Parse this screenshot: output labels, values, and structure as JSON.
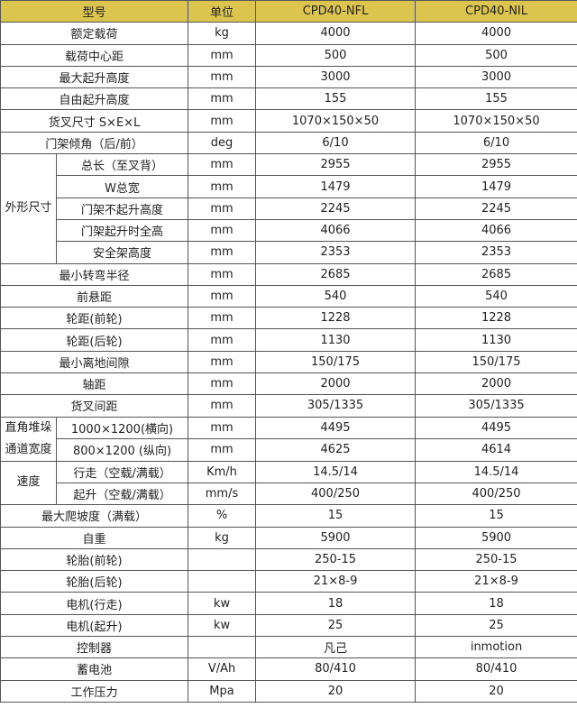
{
  "colors": {
    "header_bg": "#dcc54f",
    "border": "#555555"
  },
  "header": {
    "model": "型号",
    "unit": "单位",
    "col1": "CPD40-NFL",
    "col2": "CPD40-NIL"
  },
  "rows": [
    {
      "label": "额定载荷",
      "unit": "kg",
      "v1": "4000",
      "v2": "4000"
    },
    {
      "label": "载荷中心距",
      "unit": "mm",
      "v1": "500",
      "v2": "500"
    },
    {
      "label": "最大起升高度",
      "unit": "mm",
      "v1": "3000",
      "v2": "3000"
    },
    {
      "label": "自由起升高度",
      "unit": "mm",
      "v1": "155",
      "v2": "155"
    },
    {
      "label": "货叉尺寸  S×E×L",
      "unit": "mm",
      "v1": "1070×150×50",
      "v2": "1070×150×50"
    },
    {
      "label": "门架倾角（后/前）",
      "unit": "deg",
      "v1": "6/10",
      "v2": "6/10"
    },
    {
      "group": "外形尺寸",
      "items": [
        {
          "label": "总长（至叉背）",
          "unit": "mm",
          "v1": "2955",
          "v2": "2955"
        },
        {
          "label": "W总宽",
          "unit": "mm",
          "v1": "1479",
          "v2": "1479"
        },
        {
          "label": "门架不起升高度",
          "unit": "mm",
          "v1": "2245",
          "v2": "2245"
        },
        {
          "label": "门架起升时全高",
          "unit": "mm",
          "v1": "4066",
          "v2": "4066"
        },
        {
          "label": "安全架高度",
          "unit": "mm",
          "v1": "2353",
          "v2": "2353"
        }
      ]
    },
    {
      "label": "最小转弯半径",
      "unit": "mm",
      "v1": "2685",
      "v2": "2685"
    },
    {
      "label": "前悬距",
      "unit": "mm",
      "v1": "540",
      "v2": "540"
    },
    {
      "label": "轮距(前轮)",
      "unit": "mm",
      "v1": "1228",
      "v2": "1228"
    },
    {
      "label": "轮距(后轮)",
      "unit": "mm",
      "v1": "1130",
      "v2": "1130"
    },
    {
      "label": "最小离地间隙",
      "unit": "mm",
      "v1": "150/175",
      "v2": "150/175"
    },
    {
      "label": "轴距",
      "unit": "mm",
      "v1": "2000",
      "v2": "2000"
    },
    {
      "label": "货叉间距",
      "unit": "mm",
      "v1": "305/1335",
      "v2": "305/1335"
    },
    {
      "group": "直角堆垛通道宽度",
      "items": [
        {
          "label": "1000×1200(横向)",
          "unit": "mm",
          "v1": "4495",
          "v2": "4495"
        },
        {
          "label": "800×1200 (纵向)",
          "unit": "mm",
          "v1": "4625",
          "v2": "4614"
        }
      ]
    },
    {
      "group": "速度",
      "items": [
        {
          "label": "行走（空载/满载）",
          "unit": "Km/h",
          "v1": "14.5/14",
          "v2": "14.5/14"
        },
        {
          "label": "起升（空载/满载）",
          "unit": "mm/s",
          "v1": "400/250",
          "v2": "400/250"
        }
      ]
    },
    {
      "label": "最大爬坡度（满载）",
      "unit": "%",
      "v1": "15",
      "v2": "15"
    },
    {
      "label": "自重",
      "unit": "kg",
      "v1": "5900",
      "v2": "5900"
    },
    {
      "label": "轮胎(前轮)",
      "unit": "",
      "v1": "250-15",
      "v2": "250-15"
    },
    {
      "label": "轮胎(后轮)",
      "unit": "",
      "v1": "21×8-9",
      "v2": "21×8-9"
    },
    {
      "label": "电机(行走)",
      "unit": "kw",
      "v1": "18",
      "v2": "18"
    },
    {
      "label": "电机(起升)",
      "unit": "kw",
      "v1": "25",
      "v2": "25"
    },
    {
      "label": "控制器",
      "unit": "",
      "v1": "凡己",
      "v2": "inmotion"
    },
    {
      "label": "蓄电池",
      "unit": "V/Ah",
      "v1": "80/410",
      "v2": "80/410"
    },
    {
      "label": "工作压力",
      "unit": "Mpa",
      "v1": "20",
      "v2": "20"
    }
  ]
}
